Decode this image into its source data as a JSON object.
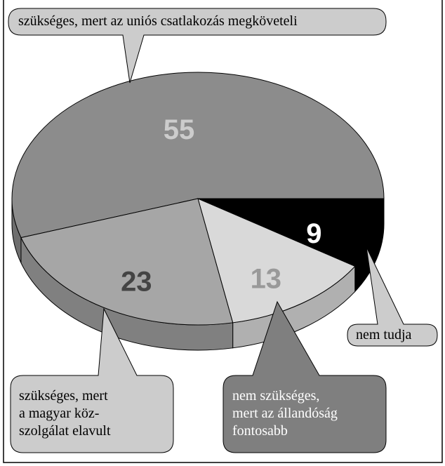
{
  "chart_data": {
    "type": "pie",
    "categories": [
      "szükséges, mert az uniós csatlakozás megköveteli",
      "nem tudja",
      "nem szükséges,\nmert az állandóság\nfontosabb",
      "szükséges, mert\na magyar köz-\nszolgálat elavult"
    ],
    "values": [
      55,
      9,
      13,
      23
    ],
    "colors": [
      "#8c8c8c",
      "#000000",
      "#d9d9d9",
      "#a6a6a6"
    ],
    "side_colors": [
      "#6e6e6e",
      "#000000",
      "#b0b0b0",
      "#808080"
    ],
    "label_colors": [
      "#cccccc",
      "#ffffff",
      "#999999",
      "#444444"
    ],
    "start_angle": 162
  }
}
